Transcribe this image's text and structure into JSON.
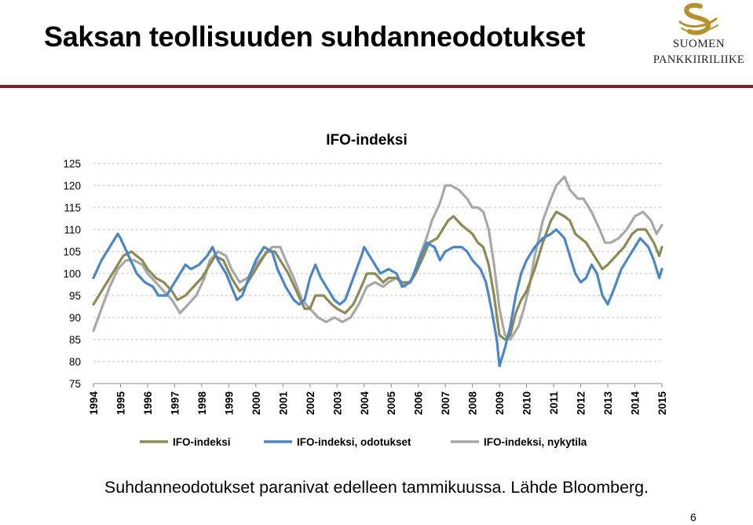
{
  "slide": {
    "title": "Saksan teollisuuden suhdanneodotukset",
    "logo_line1": "SUOMEN",
    "logo_line2": "PANKKIIRILIIKE",
    "caption": "Suhdanneodotukset paranivat edelleen tammikuussa. Lähde Bloomberg.",
    "page_number": "6",
    "colors": {
      "title_rule": "#7a1f2b",
      "logo_gold": "#b8912f"
    }
  },
  "chart_data": {
    "type": "line",
    "title": "IFO-indeksi",
    "xlabel": "",
    "ylabel": "",
    "ylim": [
      75,
      125
    ],
    "xlim": [
      1994.0,
      2015.0
    ],
    "y_ticks": [
      "125",
      "120",
      "115",
      "110",
      "105",
      "100",
      "95",
      "90",
      "85",
      "80",
      "75"
    ],
    "x_ticks": [
      "1994",
      "1995",
      "1996",
      "1997",
      "1998",
      "1999",
      "2000",
      "2001",
      "2002",
      "2003",
      "2004",
      "2005",
      "2006",
      "2007",
      "2008",
      "2009",
      "2010",
      "2011",
      "2012",
      "2013",
      "2014",
      "2015"
    ],
    "grid": "horizontal dashed",
    "legend_position": "bottom",
    "series": [
      {
        "name": "IFO-indeksi",
        "color": "#8c8a55",
        "points": [
          [
            1994.0,
            93
          ],
          [
            1994.4,
            97
          ],
          [
            1994.8,
            101
          ],
          [
            1995.1,
            104
          ],
          [
            1995.4,
            105
          ],
          [
            1995.8,
            103
          ],
          [
            1996.0,
            101
          ],
          [
            1996.3,
            99
          ],
          [
            1996.6,
            98
          ],
          [
            1996.9,
            96
          ],
          [
            1997.1,
            94
          ],
          [
            1997.4,
            95
          ],
          [
            1997.7,
            97
          ],
          [
            1998.0,
            99
          ],
          [
            1998.3,
            102
          ],
          [
            1998.5,
            104
          ],
          [
            1998.8,
            103
          ],
          [
            1999.1,
            99
          ],
          [
            1999.4,
            96
          ],
          [
            1999.6,
            97
          ],
          [
            1999.9,
            100
          ],
          [
            2000.2,
            103
          ],
          [
            2000.4,
            105
          ],
          [
            2000.7,
            105
          ],
          [
            2000.9,
            103
          ],
          [
            2001.2,
            100
          ],
          [
            2001.5,
            96
          ],
          [
            2001.8,
            92
          ],
          [
            2002.0,
            92
          ],
          [
            2002.2,
            95
          ],
          [
            2002.5,
            95
          ],
          [
            2002.8,
            93
          ],
          [
            2003.0,
            92
          ],
          [
            2003.3,
            91
          ],
          [
            2003.6,
            93
          ],
          [
            2003.9,
            97
          ],
          [
            2004.1,
            100
          ],
          [
            2004.4,
            100
          ],
          [
            2004.7,
            98
          ],
          [
            2004.9,
            99
          ],
          [
            2005.2,
            99
          ],
          [
            2005.4,
            98
          ],
          [
            2005.7,
            98
          ],
          [
            2005.9,
            100
          ],
          [
            2006.2,
            104
          ],
          [
            2006.4,
            107
          ],
          [
            2006.7,
            108
          ],
          [
            2006.9,
            110
          ],
          [
            2007.1,
            112
          ],
          [
            2007.3,
            113
          ],
          [
            2007.6,
            111
          ],
          [
            2007.8,
            110
          ],
          [
            2008.0,
            109
          ],
          [
            2008.2,
            107
          ],
          [
            2008.4,
            106
          ],
          [
            2008.6,
            102
          ],
          [
            2008.8,
            95
          ],
          [
            2009.0,
            86
          ],
          [
            2009.2,
            85
          ],
          [
            2009.4,
            86
          ],
          [
            2009.6,
            91
          ],
          [
            2009.8,
            94
          ],
          [
            2010.0,
            96
          ],
          [
            2010.3,
            101
          ],
          [
            2010.6,
            107
          ],
          [
            2010.9,
            112
          ],
          [
            2011.1,
            114
          ],
          [
            2011.4,
            113
          ],
          [
            2011.6,
            112
          ],
          [
            2011.8,
            109
          ],
          [
            2012.0,
            108
          ],
          [
            2012.2,
            107
          ],
          [
            2012.5,
            104
          ],
          [
            2012.8,
            101
          ],
          [
            2013.0,
            102
          ],
          [
            2013.3,
            104
          ],
          [
            2013.6,
            106
          ],
          [
            2013.9,
            109
          ],
          [
            2014.1,
            110
          ],
          [
            2014.4,
            110
          ],
          [
            2014.7,
            107
          ],
          [
            2014.9,
            104
          ],
          [
            2015.0,
            106
          ]
        ]
      },
      {
        "name": "IFO-indeksi, odotukset",
        "color": "#4a86c8",
        "points": [
          [
            1994.0,
            99
          ],
          [
            1994.3,
            103
          ],
          [
            1994.6,
            106
          ],
          [
            1994.9,
            109
          ],
          [
            1995.0,
            108
          ],
          [
            1995.3,
            104
          ],
          [
            1995.6,
            100
          ],
          [
            1995.9,
            98
          ],
          [
            1996.2,
            97
          ],
          [
            1996.4,
            95
          ],
          [
            1996.7,
            95
          ],
          [
            1996.9,
            97
          ],
          [
            1997.2,
            100
          ],
          [
            1997.4,
            102
          ],
          [
            1997.6,
            101
          ],
          [
            1997.9,
            102
          ],
          [
            1998.2,
            104
          ],
          [
            1998.4,
            106
          ],
          [
            1998.6,
            103
          ],
          [
            1998.9,
            100
          ],
          [
            1999.1,
            97
          ],
          [
            1999.3,
            94
          ],
          [
            1999.5,
            95
          ],
          [
            1999.8,
            100
          ],
          [
            2000.0,
            103
          ],
          [
            2000.3,
            106
          ],
          [
            2000.6,
            105
          ],
          [
            2000.8,
            101
          ],
          [
            2001.1,
            97
          ],
          [
            2001.4,
            94
          ],
          [
            2001.6,
            93
          ],
          [
            2001.8,
            94
          ],
          [
            2002.0,
            99
          ],
          [
            2002.2,
            102
          ],
          [
            2002.4,
            99
          ],
          [
            2002.7,
            96
          ],
          [
            2002.9,
            94
          ],
          [
            2003.1,
            93
          ],
          [
            2003.3,
            94
          ],
          [
            2003.6,
            99
          ],
          [
            2003.9,
            104
          ],
          [
            2004.0,
            106
          ],
          [
            2004.3,
            103
          ],
          [
            2004.6,
            100
          ],
          [
            2004.9,
            101
          ],
          [
            2005.2,
            100
          ],
          [
            2005.4,
            97
          ],
          [
            2005.7,
            98
          ],
          [
            2005.9,
            101
          ],
          [
            2006.1,
            104
          ],
          [
            2006.3,
            107
          ],
          [
            2006.6,
            106
          ],
          [
            2006.8,
            103
          ],
          [
            2007.0,
            105
          ],
          [
            2007.3,
            106
          ],
          [
            2007.6,
            106
          ],
          [
            2007.8,
            105
          ],
          [
            2008.0,
            103
          ],
          [
            2008.3,
            101
          ],
          [
            2008.5,
            98
          ],
          [
            2008.7,
            92
          ],
          [
            2008.9,
            85
          ],
          [
            2009.0,
            79
          ],
          [
            2009.2,
            83
          ],
          [
            2009.4,
            88
          ],
          [
            2009.6,
            95
          ],
          [
            2009.8,
            100
          ],
          [
            2010.0,
            103
          ],
          [
            2010.3,
            106
          ],
          [
            2010.6,
            108
          ],
          [
            2010.9,
            109
          ],
          [
            2011.1,
            110
          ],
          [
            2011.4,
            108
          ],
          [
            2011.6,
            104
          ],
          [
            2011.8,
            100
          ],
          [
            2012.0,
            98
          ],
          [
            2012.2,
            99
          ],
          [
            2012.4,
            102
          ],
          [
            2012.6,
            100
          ],
          [
            2012.8,
            95
          ],
          [
            2013.0,
            93
          ],
          [
            2013.2,
            96
          ],
          [
            2013.5,
            101
          ],
          [
            2013.8,
            104
          ],
          [
            2014.0,
            106
          ],
          [
            2014.2,
            108
          ],
          [
            2014.5,
            106
          ],
          [
            2014.7,
            103
          ],
          [
            2014.9,
            99
          ],
          [
            2015.0,
            101
          ]
        ]
      },
      {
        "name": "IFO-indeksi, nykytila",
        "color": "#a8a8a8",
        "points": [
          [
            1994.0,
            87
          ],
          [
            1994.3,
            92
          ],
          [
            1994.6,
            97
          ],
          [
            1994.9,
            101
          ],
          [
            1995.2,
            103
          ],
          [
            1995.5,
            103
          ],
          [
            1995.8,
            102
          ],
          [
            1996.0,
            100
          ],
          [
            1996.3,
            98
          ],
          [
            1996.6,
            96
          ],
          [
            1996.9,
            94
          ],
          [
            1997.2,
            91
          ],
          [
            1997.5,
            93
          ],
          [
            1997.8,
            95
          ],
          [
            1998.1,
            99
          ],
          [
            1998.3,
            103
          ],
          [
            1998.6,
            105
          ],
          [
            1998.9,
            104
          ],
          [
            1999.1,
            101
          ],
          [
            1999.4,
            98
          ],
          [
            1999.7,
            99
          ],
          [
            2000.0,
            102
          ],
          [
            2000.3,
            104
          ],
          [
            2000.6,
            106
          ],
          [
            2000.9,
            106
          ],
          [
            2001.1,
            103
          ],
          [
            2001.4,
            99
          ],
          [
            2001.7,
            94
          ],
          [
            2002.0,
            92
          ],
          [
            2002.3,
            90
          ],
          [
            2002.6,
            89
          ],
          [
            2002.9,
            90
          ],
          [
            2003.2,
            89
          ],
          [
            2003.5,
            90
          ],
          [
            2003.8,
            93
          ],
          [
            2004.1,
            97
          ],
          [
            2004.4,
            98
          ],
          [
            2004.7,
            97
          ],
          [
            2004.9,
            98
          ],
          [
            2005.2,
            99
          ],
          [
            2005.5,
            97
          ],
          [
            2005.8,
            99
          ],
          [
            2006.0,
            103
          ],
          [
            2006.3,
            108
          ],
          [
            2006.5,
            112
          ],
          [
            2006.8,
            116
          ],
          [
            2007.0,
            120
          ],
          [
            2007.2,
            120
          ],
          [
            2007.5,
            119
          ],
          [
            2007.8,
            117
          ],
          [
            2008.0,
            115
          ],
          [
            2008.2,
            115
          ],
          [
            2008.4,
            114
          ],
          [
            2008.6,
            110
          ],
          [
            2008.8,
            102
          ],
          [
            2009.0,
            92
          ],
          [
            2009.2,
            86
          ],
          [
            2009.4,
            85
          ],
          [
            2009.7,
            88
          ],
          [
            2009.9,
            92
          ],
          [
            2010.1,
            97
          ],
          [
            2010.3,
            104
          ],
          [
            2010.6,
            112
          ],
          [
            2010.9,
            117
          ],
          [
            2011.1,
            120
          ],
          [
            2011.4,
            122
          ],
          [
            2011.6,
            119
          ],
          [
            2011.9,
            117
          ],
          [
            2012.1,
            117
          ],
          [
            2012.4,
            114
          ],
          [
            2012.7,
            110
          ],
          [
            2012.9,
            107
          ],
          [
            2013.1,
            107
          ],
          [
            2013.4,
            108
          ],
          [
            2013.7,
            110
          ],
          [
            2014.0,
            113
          ],
          [
            2014.3,
            114
          ],
          [
            2014.6,
            112
          ],
          [
            2014.8,
            109
          ],
          [
            2015.0,
            111
          ]
        ]
      }
    ]
  }
}
